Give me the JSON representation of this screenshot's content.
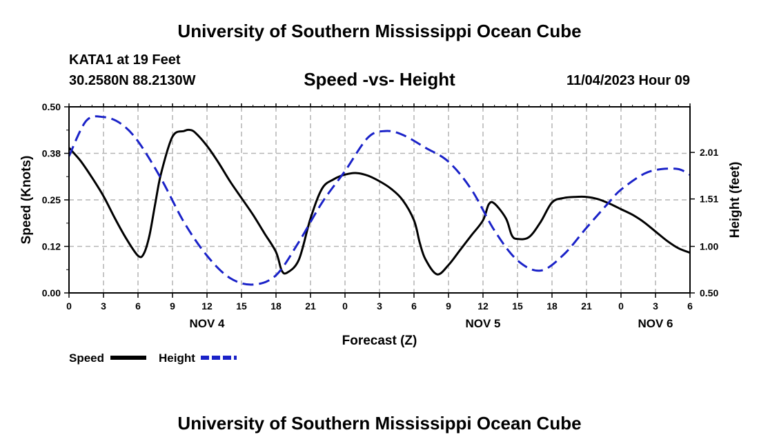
{
  "header": {
    "title": "University of Southern Mississippi Ocean Cube",
    "station": "KATA1 at 19 Feet",
    "coordinates": "30.2580N  88.2130W",
    "timestamp": "11/04/2023 Hour 09"
  },
  "footer": {
    "title": "University of Southern Mississippi Ocean Cube"
  },
  "chart_data": {
    "type": "line",
    "title": "Speed -vs- Height",
    "xlabel": "Forecast (Z)",
    "ylabel": "Speed (Knots)",
    "y2label": "Height (feet)",
    "grid": true,
    "x_range": [
      0,
      54
    ],
    "ylim": [
      0,
      0.5
    ],
    "y2lim": [
      0.5,
      2.5
    ],
    "x_tick_values": [
      0,
      3,
      6,
      9,
      12,
      15,
      18,
      21,
      24,
      27,
      30,
      33,
      36,
      39,
      42,
      45,
      48,
      51,
      54
    ],
    "x_tick_labels": [
      "0",
      "3",
      "6",
      "9",
      "12",
      "15",
      "18",
      "21",
      "0",
      "3",
      "6",
      "9",
      "12",
      "15",
      "18",
      "21",
      "0",
      "3",
      "6"
    ],
    "date_labels": [
      {
        "x": 12,
        "label": "NOV 4"
      },
      {
        "x": 36,
        "label": "NOV 5"
      },
      {
        "x": 51,
        "label": "NOV 6"
      }
    ],
    "y_tick_values": [
      0,
      0.125,
      0.25,
      0.375,
      0.5
    ],
    "y_tick_labels": [
      "0.00",
      "0.12",
      "0.25",
      "0.38",
      "0.50"
    ],
    "y2_tick_values": [
      0.5,
      1.0,
      1.51,
      2.01
    ],
    "y2_tick_labels": [
      "0.50",
      "1.00",
      "1.51",
      "2.01"
    ],
    "legend_position": "bottom-left",
    "series": [
      {
        "name": "Speed",
        "axis": "left",
        "color": "#000000",
        "style": "solid",
        "x": [
          0,
          1,
          2,
          3,
          4,
          5,
          6,
          6.5,
          7,
          7.5,
          8,
          9,
          10,
          10.5,
          11,
          12,
          13,
          14,
          15,
          16,
          17,
          18,
          18.5,
          19,
          20,
          21,
          22,
          23,
          24,
          25,
          26,
          27,
          28,
          29,
          30,
          30.5,
          31,
          32,
          33,
          34,
          35,
          36,
          36.5,
          37,
          38,
          38.5,
          39,
          40,
          41,
          42,
          43,
          44,
          45,
          46,
          47,
          48,
          49,
          50,
          51,
          52,
          53,
          54
        ],
        "values": [
          0.39,
          0.355,
          0.31,
          0.26,
          0.2,
          0.145,
          0.1,
          0.105,
          0.155,
          0.24,
          0.32,
          0.42,
          0.435,
          0.438,
          0.43,
          0.395,
          0.35,
          0.3,
          0.255,
          0.21,
          0.16,
          0.11,
          0.06,
          0.055,
          0.09,
          0.2,
          0.28,
          0.305,
          0.318,
          0.322,
          0.315,
          0.3,
          0.28,
          0.25,
          0.195,
          0.135,
          0.09,
          0.05,
          0.075,
          0.115,
          0.155,
          0.195,
          0.238,
          0.24,
          0.2,
          0.155,
          0.145,
          0.15,
          0.19,
          0.243,
          0.255,
          0.258,
          0.258,
          0.252,
          0.24,
          0.225,
          0.21,
          0.19,
          0.165,
          0.14,
          0.12,
          0.108
        ]
      },
      {
        "name": "Height",
        "axis": "right",
        "color": "#1a22c8",
        "style": "dashed",
        "x": [
          0,
          1.5,
          3,
          4.5,
          6,
          8,
          10,
          12,
          14,
          16,
          18,
          20,
          22,
          24,
          26,
          27.5,
          29,
          31,
          33,
          35,
          37,
          39,
          41,
          43,
          45,
          47,
          48,
          50,
          51.5,
          53,
          54
        ],
        "values": [
          1.97,
          2.35,
          2.39,
          2.32,
          2.13,
          1.73,
          1.26,
          0.9,
          0.66,
          0.59,
          0.69,
          1.05,
          1.47,
          1.81,
          2.17,
          2.24,
          2.2,
          2.06,
          1.91,
          1.61,
          1.17,
          0.85,
          0.74,
          0.91,
          1.2,
          1.48,
          1.61,
          1.78,
          1.83,
          1.83,
          1.77
        ]
      }
    ]
  }
}
